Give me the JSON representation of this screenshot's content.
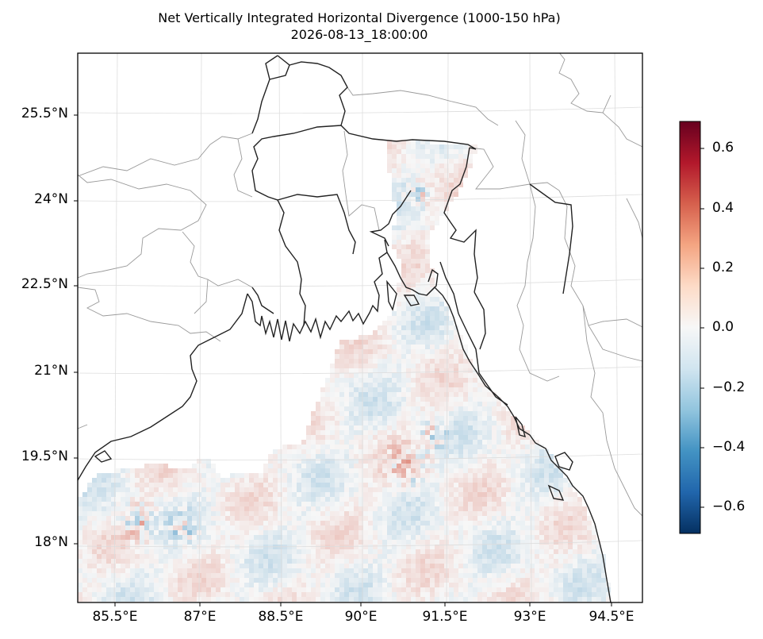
{
  "map": {
    "title": "Net Vertically Integrated Horizontal Divergence (1000-150 hPa)",
    "subtitle": "2026-08-13_18:00:00",
    "latitude_labels": [
      "25.5°N",
      "24°N",
      "22.5°N",
      "21°N",
      "19.5°N",
      "18°N"
    ],
    "longitude_labels": [
      "85.5°E",
      "87°E",
      "88.5°E",
      "90°E",
      "91.5°E",
      "93°E",
      "94.5°E"
    ],
    "colorbar": {
      "colormap": "RdBu_r",
      "ticks": [
        "0.6",
        "0.4",
        "0.2",
        "0.0",
        "−0.2",
        "−0.4",
        "−0.6"
      ],
      "range": [
        -0.69,
        0.69
      ]
    },
    "colors": {
      "coastline": "#222222",
      "borders": "#9a9a9a",
      "gridlines": "#dddddd"
    }
  }
}
